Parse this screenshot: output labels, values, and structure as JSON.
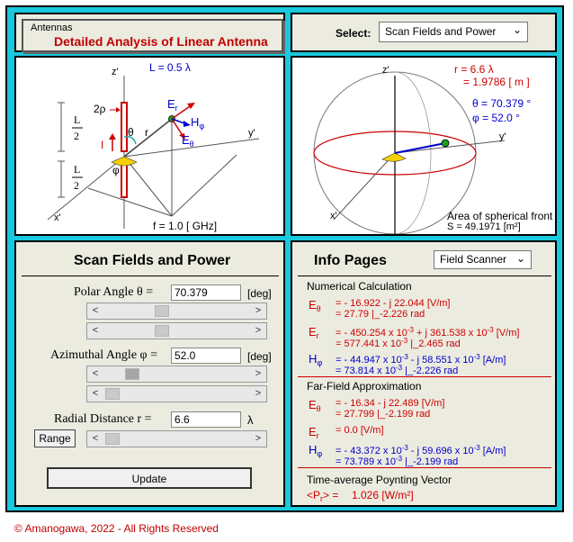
{
  "header": {
    "small_label": "Antennas",
    "title": "Detailed Analysis of Linear Antenna",
    "select_label": "Select:",
    "select_value": "Scan Fields and Power"
  },
  "left_diagram": {
    "L_label": "L = 0.5  λ",
    "f_label": "f =  1.0   [ GHz]",
    "axis_z": "z'",
    "axis_y": "y'",
    "axis_x": "x'",
    "rho": "2ρ",
    "I": "I",
    "theta": "θ",
    "phi": "φ",
    "r": "r",
    "E_r": "E",
    "E_r_sub": "r",
    "H_phi": "H",
    "H_phi_sub": "φ",
    "E_theta": "E",
    "E_theta_sub": "θ",
    "L_over_2": "L",
    "two": "2"
  },
  "right_diagram": {
    "r_lambda": "r  = 6.6 λ",
    "r_m": "= 1.9786 [ m ]",
    "theta_val": "θ = 70.379 °",
    "phi_val": "φ = 52.0 °",
    "axis_z": "z'",
    "axis_y": "y'",
    "axis_x": "x'",
    "area_label": "Area of spherical front",
    "area_value": "S = 49.1971  [m²]"
  },
  "scan": {
    "title": "Scan Fields and Power",
    "polar_label": "Polar Angle   θ  =",
    "polar_value": "70.379",
    "polar_unit": "[deg]",
    "az_label": "Azimuthal Angle   φ  =",
    "az_value": "52.0",
    "az_unit": "[deg]",
    "radial_label": "Radial Distance   r   =",
    "radial_value": "6.6",
    "radial_unit": "λ",
    "range_button": "Range",
    "update_button": "Update",
    "scroll_left": "<",
    "scroll_right": ">"
  },
  "info": {
    "title": "Info Pages",
    "select_value": "Field Scanner",
    "numerical_header": "Numerical Calculation",
    "n_Et_1": "= - 16.922   - j 22.044  [V/m]",
    "n_Et_2": "=   27.79  |_-2.226 rad",
    "n_Er_1a": "= - 450.254 x 10",
    "n_Er_1b": " + j 361.538 x 10",
    "n_Er_1c": "  [V/m]",
    "n_Er_2a": "=   577.441 x 10",
    "n_Er_2b": "  |_2.465 rad",
    "n_Hp_1a": "= - 44.947 x 10",
    "n_Hp_1b": "  - j 58.551 x 10",
    "n_Hp_1c": "  [A/m]",
    "n_Hp_2a": "=   73.814 x 10",
    "n_Hp_2b": "  |_-2.226 rad",
    "exp": "-3",
    "far_header": "Far-Field Approximation",
    "f_Et_1": "= - 16.34   - j 22.489  [V/m]",
    "f_Et_2": "=   27.799  |_-2.199 rad",
    "f_Er_1": "=   0.0  [V/m]",
    "f_Hp_1a": "= - 43.372 x 10",
    "f_Hp_1b": "  - j 59.696 x 10",
    "f_Hp_1c": "  [A/m]",
    "f_Hp_2a": "=   73.789 x 10",
    "f_Hp_2b": "  |_-2.199 rad",
    "poynting_header": "Time-average Poynting Vector",
    "poynting_lhs_a": "<P",
    "poynting_lhs_sub": "r",
    "poynting_lhs_b": "> =",
    "poynting_val": "1.026  [W/m²]",
    "E": "E",
    "H": "H",
    "sub_theta": "θ",
    "sub_r": "r",
    "sub_phi": "φ"
  },
  "footer": "©  Amanogawa, 2022 - All Rights Reserved"
}
